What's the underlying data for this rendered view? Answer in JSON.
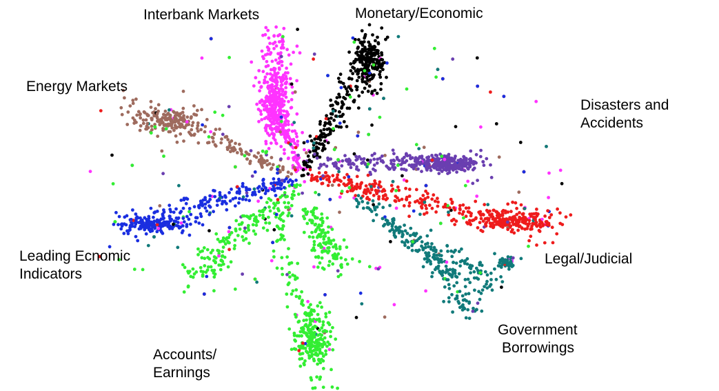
{
  "chart_data": {
    "type": "scatter",
    "title": "",
    "xlabel": "",
    "ylabel": "",
    "grid": false,
    "axes_visible": false,
    "legend": "none",
    "clusters": [
      {
        "name": "Interbank Markets",
        "label_lines": [
          "Interbank Markets"
        ],
        "color": "#ff33ff",
        "points": 520
      },
      {
        "name": "Monetary/Economic",
        "label_lines": [
          "Monetary/Economic"
        ],
        "color": "#000000",
        "points": 420
      },
      {
        "name": "Energy Markets",
        "label_lines": [
          "Energy Markets"
        ],
        "color": "#9e6b5e",
        "points": 300
      },
      {
        "name": "Disasters and Accidents",
        "label_lines": [
          "Disasters and",
          "Accidents"
        ],
        "color": "#6a3fb0",
        "points": 420
      },
      {
        "name": "Legal/Judicial",
        "label_lines": [
          "Legal/Judicial"
        ],
        "color": "#ee1c1c",
        "points": 480
      },
      {
        "name": "Government Borrowings",
        "label_lines": [
          "Government",
          "Borrowings"
        ],
        "color": "#117a7a",
        "points": 360
      },
      {
        "name": "Accounts/Earnings",
        "label_lines": [
          "Accounts/",
          "Earnings"
        ],
        "color": "#33ee33",
        "points": 640
      },
      {
        "name": "Leading Ecnomic Indicators",
        "label_lines": [
          "Leading Ecnomic",
          "Indicators"
        ],
        "color": "#1a2ee0",
        "points": 360
      }
    ]
  }
}
